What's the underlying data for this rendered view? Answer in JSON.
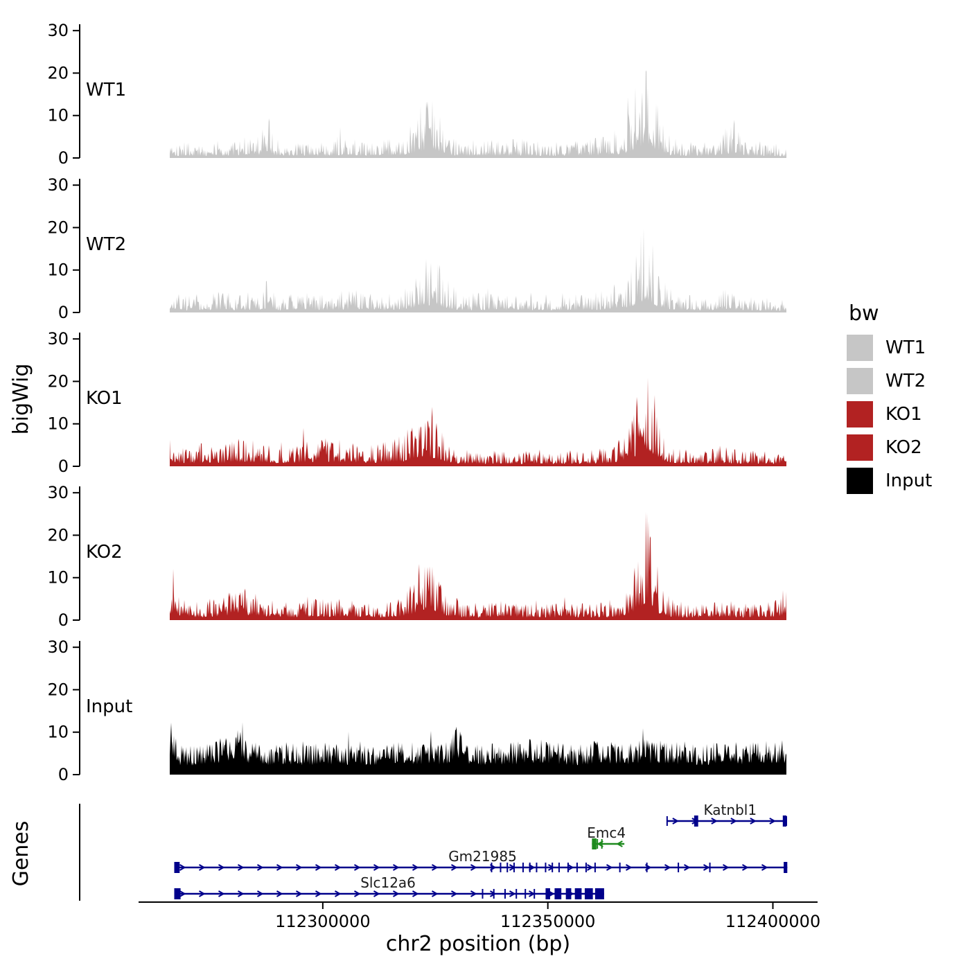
{
  "axis": {
    "y_label": "bigWig",
    "genes_label": "Genes",
    "x_label": "chr2 position (bp)"
  },
  "chart_data": {
    "type": "area",
    "title": "",
    "x_domain_bp": [
      112266000,
      112403000
    ],
    "x_ticks": [
      {
        "value": 112300000,
        "label": "112300000"
      },
      {
        "value": 112350000,
        "label": "112350000"
      },
      {
        "value": 112400000,
        "label": "112400000"
      }
    ],
    "y_ticks": [
      0,
      10,
      20,
      30
    ],
    "ymax": 31.5,
    "grid": false,
    "legend": {
      "title": "bw",
      "position": "right",
      "entries": [
        {
          "label": "WT1",
          "color": "#C6C6C6"
        },
        {
          "label": "WT2",
          "color": "#C6C6C6"
        },
        {
          "label": "KO1",
          "color": "#B22222"
        },
        {
          "label": "KO2",
          "color": "#B22222"
        },
        {
          "label": "Input",
          "color": "#000000"
        }
      ]
    },
    "tracks": [
      {
        "name": "WT1",
        "color": "#C6C6C6",
        "seed": 101,
        "noise": {
          "floor": 0.12,
          "power": 2.2,
          "spike_prob": 0.02,
          "spike_gain": 1.6
        },
        "envelope": [
          [
            112266000,
            7
          ],
          [
            112268000,
            4
          ],
          [
            112274000,
            4
          ],
          [
            112280000,
            4.5
          ],
          [
            112286000,
            6
          ],
          [
            112287500,
            13
          ],
          [
            112289000,
            5
          ],
          [
            112293000,
            4
          ],
          [
            112297000,
            5
          ],
          [
            112301000,
            4
          ],
          [
            112305000,
            6
          ],
          [
            112309000,
            4
          ],
          [
            112313000,
            4.5
          ],
          [
            112317000,
            5
          ],
          [
            112319500,
            8
          ],
          [
            112321500,
            12
          ],
          [
            112323500,
            14
          ],
          [
            112325000,
            15
          ],
          [
            112326500,
            11
          ],
          [
            112328000,
            5
          ],
          [
            112332000,
            4
          ],
          [
            112336000,
            5
          ],
          [
            112340000,
            4
          ],
          [
            112344000,
            5
          ],
          [
            112348000,
            4
          ],
          [
            112352000,
            4
          ],
          [
            112356000,
            5
          ],
          [
            112360000,
            5
          ],
          [
            112364000,
            6
          ],
          [
            112366500,
            8
          ],
          [
            112368500,
            13
          ],
          [
            112370500,
            21
          ],
          [
            112371800,
            29
          ],
          [
            112373000,
            22
          ],
          [
            112374500,
            12
          ],
          [
            112376500,
            6
          ],
          [
            112380000,
            4
          ],
          [
            112384000,
            4
          ],
          [
            112388000,
            5
          ],
          [
            112391500,
            11
          ],
          [
            112393000,
            4
          ],
          [
            112398000,
            4
          ],
          [
            112403000,
            3
          ]
        ]
      },
      {
        "name": "WT2",
        "color": "#C6C6C6",
        "seed": 202,
        "noise": {
          "floor": 0.12,
          "power": 2.2,
          "spike_prob": 0.02,
          "spike_gain": 1.6
        },
        "envelope": [
          [
            112266000,
            7
          ],
          [
            112270000,
            4
          ],
          [
            112276000,
            5
          ],
          [
            112282000,
            4.5
          ],
          [
            112286500,
            6
          ],
          [
            112288000,
            9
          ],
          [
            112290000,
            4.5
          ],
          [
            112295000,
            5
          ],
          [
            112300000,
            4.5
          ],
          [
            112305000,
            5.5
          ],
          [
            112310000,
            6
          ],
          [
            112314000,
            4
          ],
          [
            112318000,
            6
          ],
          [
            112321000,
            10
          ],
          [
            112323000,
            13
          ],
          [
            112325500,
            13
          ],
          [
            112327500,
            8
          ],
          [
            112331000,
            4
          ],
          [
            112336000,
            5
          ],
          [
            112342000,
            4
          ],
          [
            112348000,
            5
          ],
          [
            112354000,
            4
          ],
          [
            112360000,
            5
          ],
          [
            112364000,
            6
          ],
          [
            112367500,
            9
          ],
          [
            112369500,
            15
          ],
          [
            112371500,
            24
          ],
          [
            112373000,
            19
          ],
          [
            112374800,
            9
          ],
          [
            112378000,
            5
          ],
          [
            112384000,
            4
          ],
          [
            112390000,
            6
          ],
          [
            112396000,
            4
          ],
          [
            112403000,
            3
          ]
        ]
      },
      {
        "name": "KO1",
        "color": "#B22222",
        "seed": 303,
        "noise": {
          "floor": 0.15,
          "power": 2.0,
          "spike_prob": 0.025,
          "spike_gain": 1.6
        },
        "envelope": [
          [
            112266000,
            7
          ],
          [
            112270000,
            4
          ],
          [
            112274000,
            6
          ],
          [
            112278000,
            5
          ],
          [
            112282000,
            7
          ],
          [
            112285500,
            6
          ],
          [
            112289000,
            5
          ],
          [
            112293000,
            5
          ],
          [
            112297000,
            6
          ],
          [
            112301000,
            7
          ],
          [
            112305000,
            6
          ],
          [
            112310000,
            5
          ],
          [
            112314000,
            6
          ],
          [
            112318000,
            8
          ],
          [
            112320000,
            12
          ],
          [
            112322000,
            15
          ],
          [
            112324000,
            14
          ],
          [
            112326000,
            10
          ],
          [
            112328500,
            5
          ],
          [
            112332000,
            4
          ],
          [
            112336000,
            3.5
          ],
          [
            112340000,
            4
          ],
          [
            112344000,
            3.5
          ],
          [
            112348000,
            4
          ],
          [
            112352000,
            3.5
          ],
          [
            112356000,
            4
          ],
          [
            112360000,
            4
          ],
          [
            112364000,
            5
          ],
          [
            112367000,
            8
          ],
          [
            112369000,
            14
          ],
          [
            112371000,
            22
          ],
          [
            112372500,
            24
          ],
          [
            112374000,
            16
          ],
          [
            112376000,
            7
          ],
          [
            112380000,
            4
          ],
          [
            112384000,
            4
          ],
          [
            112388000,
            5
          ],
          [
            112392000,
            4
          ],
          [
            112396000,
            4
          ],
          [
            112400000,
            4
          ],
          [
            112403000,
            3
          ]
        ]
      },
      {
        "name": "KO2",
        "color": "#B22222",
        "seed": 404,
        "noise": {
          "floor": 0.15,
          "power": 2.0,
          "spike_prob": 0.025,
          "spike_gain": 1.6
        },
        "envelope": [
          [
            112266000,
            9
          ],
          [
            112270000,
            4
          ],
          [
            112274000,
            5
          ],
          [
            112278000,
            6
          ],
          [
            112282000,
            8
          ],
          [
            112285500,
            7
          ],
          [
            112289000,
            5
          ],
          [
            112293000,
            4
          ],
          [
            112297000,
            5
          ],
          [
            112301000,
            5
          ],
          [
            112305000,
            5
          ],
          [
            112309000,
            4
          ],
          [
            112313000,
            4
          ],
          [
            112317000,
            5
          ],
          [
            112319500,
            9
          ],
          [
            112321500,
            14
          ],
          [
            112323500,
            14
          ],
          [
            112325500,
            12
          ],
          [
            112327500,
            7
          ],
          [
            112331000,
            4
          ],
          [
            112335000,
            4
          ],
          [
            112339000,
            5
          ],
          [
            112343000,
            4
          ],
          [
            112347000,
            4
          ],
          [
            112351000,
            4
          ],
          [
            112355000,
            4
          ],
          [
            112359000,
            4
          ],
          [
            112363000,
            4.5
          ],
          [
            112366500,
            6
          ],
          [
            112368500,
            10
          ],
          [
            112370500,
            19
          ],
          [
            112371800,
            28
          ],
          [
            112373500,
            18
          ],
          [
            112375000,
            9
          ],
          [
            112377500,
            5
          ],
          [
            112381500,
            4
          ],
          [
            112385500,
            4
          ],
          [
            112389500,
            5
          ],
          [
            112393500,
            4
          ],
          [
            112397500,
            4
          ],
          [
            112401500,
            5
          ],
          [
            112403000,
            10
          ]
        ]
      },
      {
        "name": "Input",
        "color": "#000000",
        "seed": 505,
        "noise": {
          "floor": 0.3,
          "power": 1.3,
          "spike_prob": 0.02,
          "spike_gain": 1.5
        },
        "envelope": [
          [
            112266000,
            15
          ],
          [
            112268000,
            7
          ],
          [
            112272000,
            7
          ],
          [
            112276000,
            8
          ],
          [
            112280000,
            10
          ],
          [
            112281500,
            16
          ],
          [
            112283000,
            8
          ],
          [
            112288000,
            7
          ],
          [
            112292000,
            8
          ],
          [
            112296000,
            7
          ],
          [
            112300000,
            8
          ],
          [
            112304000,
            7
          ],
          [
            112308000,
            8
          ],
          [
            112312000,
            7
          ],
          [
            112316000,
            8
          ],
          [
            112320000,
            8
          ],
          [
            112324000,
            7
          ],
          [
            112328000,
            8
          ],
          [
            112330000,
            13
          ],
          [
            112332000,
            8
          ],
          [
            112336000,
            7
          ],
          [
            112340000,
            8
          ],
          [
            112344000,
            8
          ],
          [
            112348000,
            9
          ],
          [
            112352000,
            8
          ],
          [
            112356000,
            7
          ],
          [
            112360000,
            8
          ],
          [
            112364000,
            8
          ],
          [
            112368000,
            8
          ],
          [
            112372000,
            9
          ],
          [
            112376000,
            8
          ],
          [
            112380000,
            8
          ],
          [
            112384000,
            7
          ],
          [
            112388000,
            8
          ],
          [
            112392000,
            8
          ],
          [
            112396000,
            8
          ],
          [
            112400000,
            9
          ],
          [
            112403000,
            8
          ]
        ]
      }
    ],
    "genes": [
      {
        "name": "Katnbl1",
        "color": "#00008B",
        "strand": "+",
        "row": 0,
        "start": 112376500,
        "end": 112403000,
        "label_bp": 112390500,
        "ticks": [
          112376500,
          112403000
        ],
        "exons": [
          [
            112382500,
            112383400
          ],
          [
            112402200,
            112403000
          ]
        ]
      },
      {
        "name": "Emc4",
        "color": "#1E8A1E",
        "strand": "-",
        "row": 1,
        "start": 112359800,
        "end": 112367000,
        "label_bp": 112363000,
        "ticks": [
          112361000,
          112362000
        ],
        "exons": [
          [
            112359800,
            112360800
          ]
        ]
      },
      {
        "name": "Gm21985",
        "color": "#00008B",
        "strand": "+",
        "row": 2,
        "start": 112267000,
        "end": 112403200,
        "label_bp": 112335500,
        "ticks": [
          112337500,
          112339500,
          112341000,
          112342500,
          112344500,
          112346000,
          112347500,
          112349500,
          112351000,
          112352500,
          112354500,
          112356500,
          112358500,
          112360500,
          112366000,
          112372000,
          112379000,
          112386000
        ],
        "exons": [
          [
            112267000,
            112268200
          ],
          [
            112402400,
            112403200
          ]
        ]
      },
      {
        "name": "Slc12a6",
        "color": "#00008B",
        "strand": "+",
        "row": 3,
        "start": 112267000,
        "end": 112362500,
        "label_bp": 112314500,
        "ticks": [
          112335500,
          112338000,
          112340500,
          112343000,
          112345000,
          112347000
        ],
        "exons": [
          [
            112267000,
            112268400
          ],
          [
            112349500,
            112350500
          ],
          [
            112351500,
            112353000
          ],
          [
            112354000,
            112355200
          ],
          [
            112356000,
            112357500
          ],
          [
            112358200,
            112360000
          ],
          [
            112360500,
            112362500
          ]
        ]
      }
    ]
  }
}
